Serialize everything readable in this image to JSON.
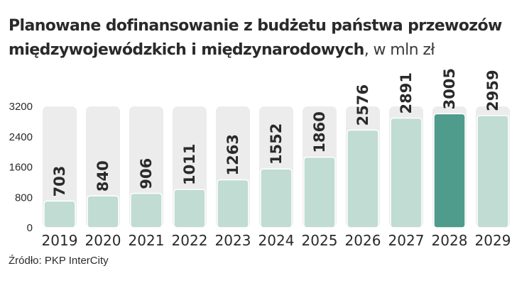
{
  "title": {
    "main": "Planowane dofinansowanie z budżetu państwa przewozów międzywojewódzkich i międzynarodowych",
    "unit": ", w mln zł"
  },
  "source": "Źródło: PKP InterCity",
  "colors": {
    "bar": "#c0dcd3",
    "bar_highlight": "#4f9b8c",
    "bar_stroke": "#ffffff",
    "band": "#ececec",
    "text": "#2a2a2a"
  },
  "chart_data": {
    "type": "bar",
    "title": "Planowane dofinansowanie z budżetu państwa przewozów międzywojewódzkich i międzynarodowych, w mln zł",
    "categories": [
      "2019",
      "2020",
      "2021",
      "2022",
      "2023",
      "2024",
      "2025",
      "2026",
      "2027",
      "2028",
      "2029"
    ],
    "values": [
      703,
      840,
      906,
      1011,
      1263,
      1552,
      1860,
      2576,
      2891,
      3005,
      2959
    ],
    "highlight_category": "2028",
    "yticks": [
      0,
      800,
      1600,
      2400,
      3200
    ],
    "ylim": [
      0,
      3200
    ],
    "grid": false,
    "legend": "none",
    "data_labels": "above bars, rotated vertical"
  }
}
